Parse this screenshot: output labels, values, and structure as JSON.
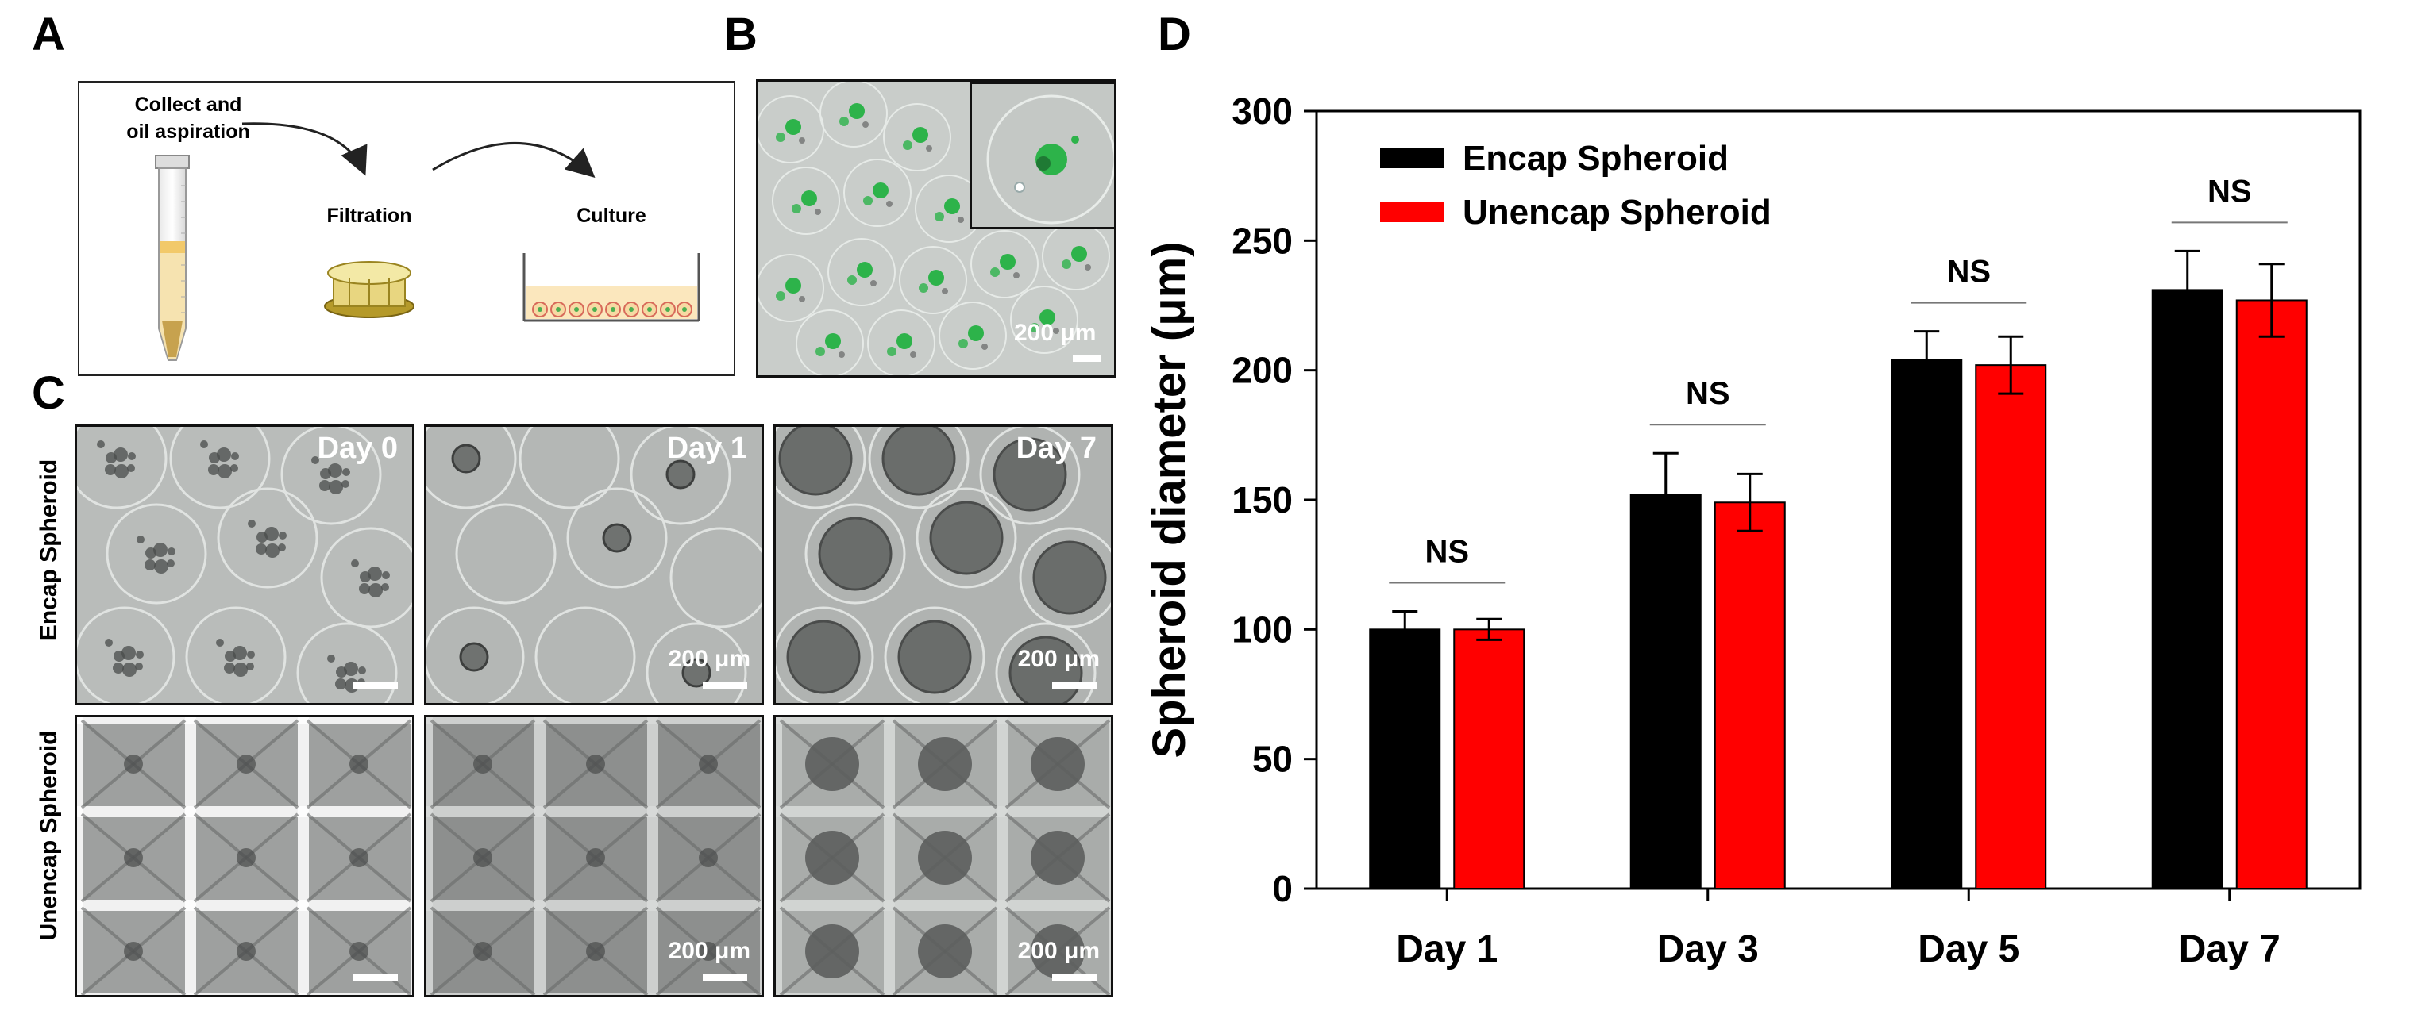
{
  "panels": {
    "a": {
      "letter": "A",
      "collect_line1": "Collect and",
      "collect_line2": "oil aspiration",
      "filtration": "Filtration",
      "culture": "Culture"
    },
    "b": {
      "letter": "B",
      "scale": "200 μm"
    },
    "c": {
      "letter": "C",
      "rows": [
        "Encap Spheroid",
        "Unencap Spheroid"
      ],
      "days": [
        "Day 0",
        "Day 1",
        "Day 7"
      ],
      "scale": "200 μm"
    },
    "d": {
      "letter": "D"
    }
  },
  "colors": {
    "encap": "#000000",
    "unencap": "#ff0000",
    "green_fluor": "#2db34a"
  },
  "chart_data": {
    "type": "bar",
    "categories": [
      "Day 1",
      "Day 3",
      "Day 5",
      "Day 7"
    ],
    "series": [
      {
        "name": "Encap Spheroid",
        "color": "#000000",
        "values": [
          100,
          152,
          204,
          231
        ],
        "errors": [
          7,
          16,
          11,
          15
        ]
      },
      {
        "name": "Unencap Spheroid",
        "color": "#ff0000",
        "values": [
          100,
          149,
          202,
          227
        ],
        "errors": [
          4,
          11,
          11,
          14
        ]
      }
    ],
    "annotations": [
      "NS",
      "NS",
      "NS",
      "NS"
    ],
    "xlabel": "",
    "ylabel": "Spheroid diameter (μm)",
    "ylim": [
      0,
      300
    ],
    "yticks": [
      0,
      50,
      100,
      150,
      200,
      250,
      300
    ],
    "grid": false,
    "legend_position": "top-left"
  }
}
